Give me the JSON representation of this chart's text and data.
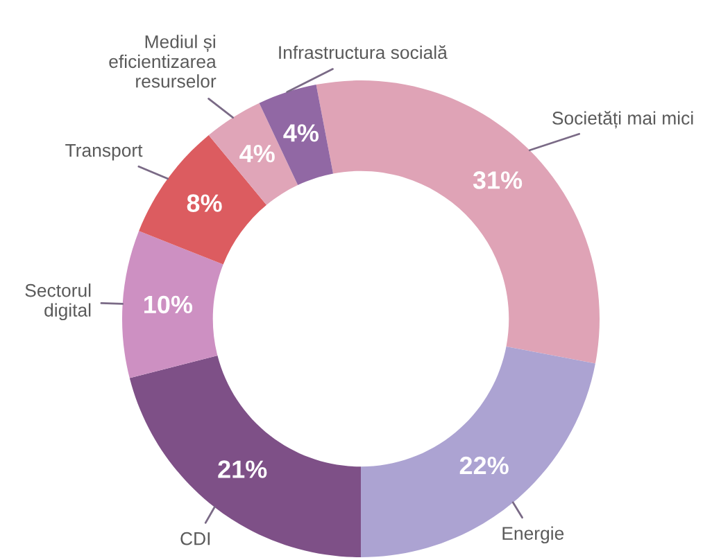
{
  "chart_data": {
    "type": "donut",
    "categories": [
      "Societăți mai mici",
      "Energie",
      "CDI",
      "Sectorul\ndigital",
      "Transport",
      "Mediul și\neficientizarea\nresurselor",
      "Infrastructura socială"
    ],
    "values": [
      31,
      22,
      21,
      10,
      8,
      4,
      4
    ],
    "colors": [
      "#dfa3b6",
      "#aca3d2",
      "#7e5087",
      "#cd90c2",
      "#dc5c60",
      "#e0a5b8",
      "#9168a4"
    ],
    "value_labels": [
      "31%",
      "22%",
      "21%",
      "10%",
      "8%",
      "4%",
      "4%"
    ]
  }
}
